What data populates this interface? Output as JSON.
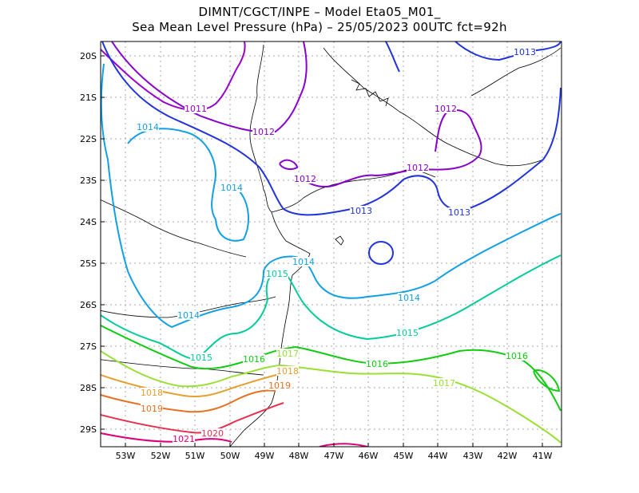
{
  "title_line1": "DIMNT/CGCT/INPE –  Model Eta05_M01_",
  "title_line2": "Sea Mean Level Pressure (hPa) – 25/05/2023 00UTC fct=92h",
  "axes": {
    "lat_labels": [
      "20S",
      "21S",
      "22S",
      "23S",
      "24S",
      "25S",
      "26S",
      "27S",
      "28S",
      "29S"
    ],
    "lon_labels": [
      "53W",
      "52W",
      "51W",
      "50W",
      "49W",
      "48W",
      "47W",
      "46W",
      "45W",
      "44W",
      "43W",
      "42W",
      "41W"
    ]
  },
  "colors": {
    "1011": "#9900cc",
    "1012": "#8800cc",
    "1013": "#2233dd",
    "1014": "#11a0e6",
    "1015": "#00cc99",
    "1016": "#11cc11",
    "1017": "#99e033",
    "1018": "#e6a030",
    "1019": "#e87020",
    "1020": "#e83050",
    "1021": "#dd0077"
  },
  "contour_labels": [
    {
      "value": "1011",
      "color": "1011"
    },
    {
      "value": "1012",
      "color": "1012"
    },
    {
      "value": "1012",
      "color": "1012"
    },
    {
      "value": "1012",
      "color": "1012"
    },
    {
      "value": "1012",
      "color": "1012"
    },
    {
      "value": "1013",
      "color": "1013"
    },
    {
      "value": "1013",
      "color": "1013"
    },
    {
      "value": "1013",
      "color": "1013"
    },
    {
      "value": "1014",
      "color": "1014"
    },
    {
      "value": "1014",
      "color": "1014"
    },
    {
      "value": "1014",
      "color": "1014"
    },
    {
      "value": "1014",
      "color": "1014"
    },
    {
      "value": "1014",
      "color": "1014"
    },
    {
      "value": "1015",
      "color": "1015"
    },
    {
      "value": "1015",
      "color": "1015"
    },
    {
      "value": "1015",
      "color": "1015"
    },
    {
      "value": "1016",
      "color": "1016"
    },
    {
      "value": "1016",
      "color": "1016"
    },
    {
      "value": "1016",
      "color": "1016"
    },
    {
      "value": "1017",
      "color": "1017"
    },
    {
      "value": "1017",
      "color": "1017"
    },
    {
      "value": "1018",
      "color": "1018"
    },
    {
      "value": "1018",
      "color": "1018"
    },
    {
      "value": "1019",
      "color": "1019"
    },
    {
      "value": "1019",
      "color": "1019"
    },
    {
      "value": "1020",
      "color": "1020"
    },
    {
      "value": "1021",
      "color": "1021"
    }
  ]
}
